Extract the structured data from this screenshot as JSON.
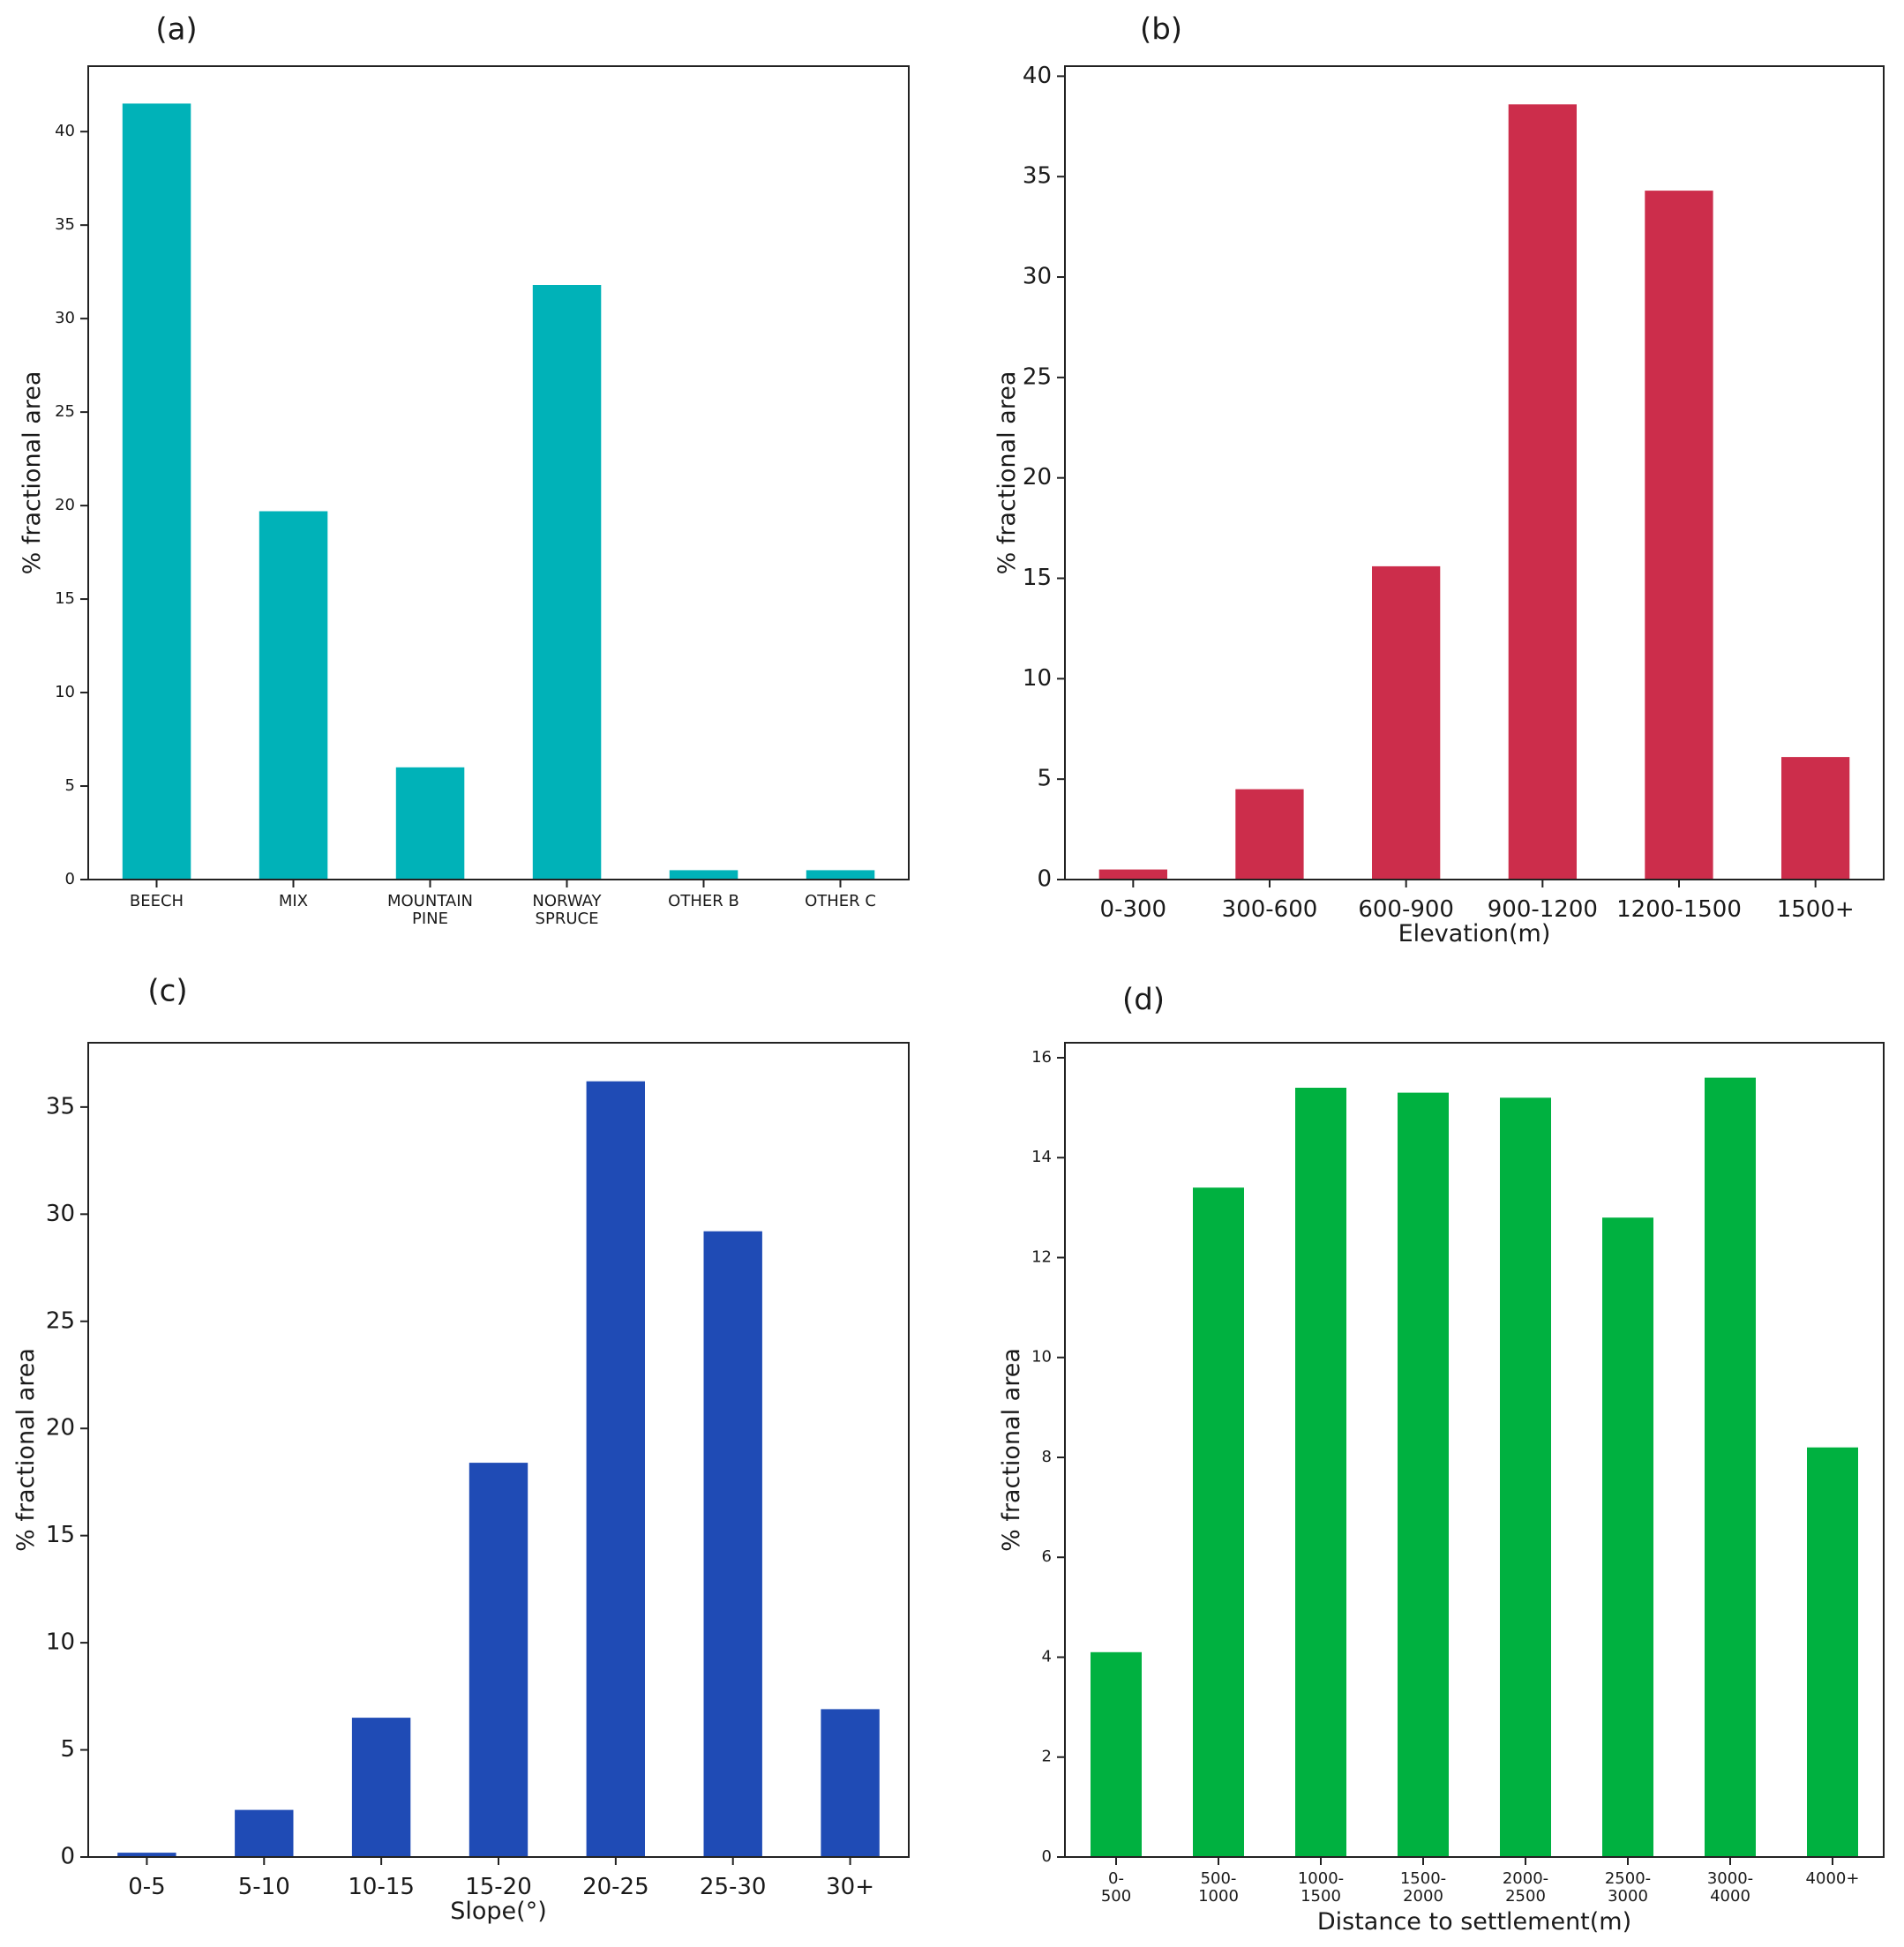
{
  "chart_data": [
    {
      "type": "bar",
      "panel_label": "(a)",
      "categories": [
        "BEECH",
        "MIX",
        "MOUNTAIN\nPINE",
        "NORWAY\nSPRUCE",
        "OTHER B",
        "OTHER C"
      ],
      "values": [
        41.5,
        19.7,
        6.0,
        31.8,
        0.5,
        0.5
      ],
      "yticks": [
        0,
        5,
        10,
        15,
        20,
        25,
        30,
        35,
        40
      ],
      "ylim": [
        0,
        43.5
      ],
      "xlabel": "",
      "ylabel": "% fractional area",
      "color": "#00b2b8",
      "legend": "none",
      "grid": false
    },
    {
      "type": "bar",
      "panel_label": "(b)",
      "categories": [
        "0-300",
        "300-600",
        "600-900",
        "900-1200",
        "1200-1500",
        "1500+"
      ],
      "values": [
        0.5,
        4.5,
        15.6,
        38.6,
        34.3,
        6.1
      ],
      "yticks": [
        0,
        5,
        10,
        15,
        20,
        25,
        30,
        35,
        40
      ],
      "ylim": [
        0,
        40.5
      ],
      "xlabel": "Elevation(m)",
      "ylabel": "% fractional area",
      "color": "#cc2d4b",
      "legend": "none",
      "grid": false
    },
    {
      "type": "bar",
      "panel_label": "(c)",
      "categories": [
        "0-5",
        "5-10",
        "10-15",
        "15-20",
        "20-25",
        "25-30",
        "30+"
      ],
      "values": [
        0.2,
        2.2,
        6.5,
        18.4,
        36.2,
        29.2,
        6.9
      ],
      "yticks": [
        0,
        5,
        10,
        15,
        20,
        25,
        30,
        35
      ],
      "ylim": [
        0,
        38
      ],
      "xlabel": "Slope(°)",
      "ylabel": "% fractional area",
      "color": "#1f4bb5",
      "legend": "none",
      "grid": false
    },
    {
      "type": "bar",
      "panel_label": "(d)",
      "categories": [
        "0-\n500",
        "500-\n1000",
        "1000-\n1500",
        "1500-\n2000",
        "2000-\n2500",
        "2500-\n3000",
        "3000-\n4000",
        "4000+"
      ],
      "values": [
        4.1,
        13.4,
        15.4,
        15.3,
        15.2,
        12.8,
        15.6,
        8.2
      ],
      "yticks": [
        0,
        2,
        4,
        6,
        8,
        10,
        12,
        14,
        16
      ],
      "ylim": [
        0,
        16.3
      ],
      "xlabel": "Distance to settlement(m)",
      "ylabel": "% fractional area",
      "color": "#00b140",
      "legend": "none",
      "grid": false
    }
  ]
}
